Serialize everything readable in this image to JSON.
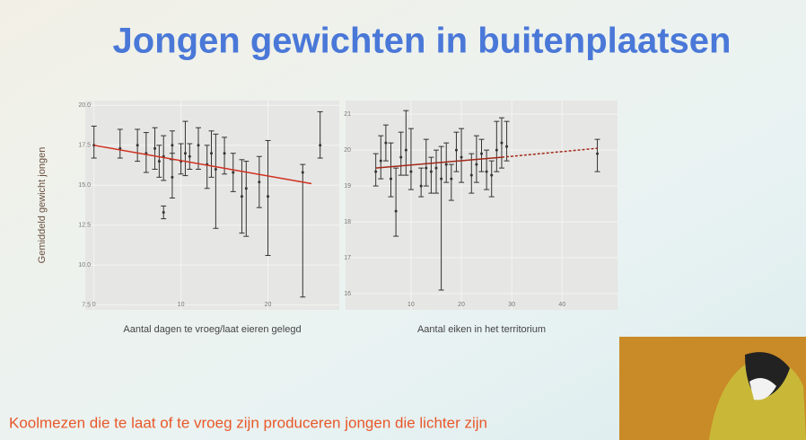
{
  "title": "Jongen gewichten in buitenplaatsen",
  "caption": "Koolmezen die te laat of te vroeg zijn produceren jongen die lichter zijn",
  "chart_data": [
    {
      "type": "errorbar",
      "xlabel": "Aantal dagen te vroeg/laat eieren gelegd",
      "ylabel": "Gemiddeld gewicht jongen",
      "color": "#333333",
      "x": [
        0,
        3,
        5,
        6,
        7,
        7.5,
        8,
        8,
        9,
        9,
        10,
        10.5,
        11,
        12,
        13,
        13.5,
        14,
        15,
        16,
        17,
        17.5,
        19,
        20,
        24,
        26
      ],
      "values": [
        17.5,
        17.3,
        17.5,
        17.0,
        17.3,
        16.5,
        16.8,
        13.3,
        15.5,
        17.5,
        16.5,
        17.0,
        16.8,
        17.5,
        16.3,
        17.0,
        16.0,
        17.0,
        15.8,
        14.3,
        14.8,
        15.2,
        14.3,
        15.8,
        17.5
      ],
      "lower": [
        16.7,
        16.7,
        16.5,
        15.8,
        16.0,
        15.5,
        15.3,
        12.9,
        14.2,
        16.6,
        15.7,
        15.6,
        16.0,
        16.0,
        14.8,
        15.5,
        12.3,
        15.7,
        14.6,
        12.0,
        11.8,
        13.6,
        10.6,
        8.0,
        16.7
      ],
      "upper": [
        18.7,
        18.5,
        18.5,
        18.3,
        18.6,
        17.5,
        18.1,
        13.7,
        17.0,
        18.4,
        17.6,
        19.0,
        17.6,
        18.6,
        17.5,
        18.4,
        18.2,
        18.0,
        17.0,
        16.6,
        16.5,
        16.8,
        17.8,
        16.3,
        19.6
      ],
      "trend": [
        {
          "x": [
            0,
            25
          ],
          "values": [
            17.5,
            15.1
          ],
          "color": "#d03020",
          "dashed": false
        }
      ],
      "xlim": [
        -1,
        28.2
      ],
      "ylim": [
        7.2,
        20.3
      ],
      "xticks": [
        0,
        10,
        20
      ],
      "yticks": [
        7.5,
        {
          "value": 10,
          "label": "10.0"
        },
        12.5,
        {
          "value": 15,
          "label": "15.0"
        },
        17.5,
        {
          "value": 20,
          "label": "20.0"
        }
      ]
    },
    {
      "type": "errorbar",
      "xlabel": "Aantal eiken in het territorium",
      "color": "#333333",
      "x": [
        3,
        4,
        5,
        6,
        7,
        8,
        9,
        10,
        12,
        13,
        14,
        15,
        16,
        17,
        18,
        19,
        20,
        22,
        23,
        24,
        25,
        26,
        27,
        28,
        29,
        47
      ],
      "values": [
        19.4,
        19.7,
        20.2,
        19.2,
        18.3,
        19.8,
        20.0,
        19.4,
        19.0,
        19.5,
        19.4,
        19.5,
        19.2,
        19.6,
        19.2,
        20.0,
        19.8,
        19.3,
        19.6,
        19.9,
        19.4,
        19.3,
        20.0,
        20.2,
        20.1,
        19.9
      ],
      "lower": [
        19.0,
        19.2,
        19.7,
        18.7,
        17.6,
        19.3,
        19.3,
        18.9,
        18.7,
        19.0,
        18.8,
        18.8,
        16.1,
        19.1,
        18.6,
        19.4,
        19.1,
        18.8,
        19.1,
        19.4,
        18.9,
        18.7,
        19.4,
        19.5,
        19.7,
        19.4
      ],
      "upper": [
        19.9,
        20.4,
        20.7,
        20.2,
        19.5,
        20.5,
        21.1,
        20.6,
        19.5,
        20.3,
        19.8,
        20.0,
        20.1,
        20.2,
        19.6,
        20.5,
        20.6,
        19.9,
        20.4,
        20.3,
        20.0,
        19.7,
        20.8,
        20.9,
        20.8,
        20.3
      ],
      "trend": [
        {
          "x": [
            3,
            28
          ],
          "values": [
            19.5,
            19.8
          ],
          "color": "#a02818",
          "dashed": false
        },
        {
          "x": [
            28,
            47
          ],
          "values": [
            19.8,
            20.05
          ],
          "color": "#a02818",
          "dashed": true
        }
      ],
      "xlim": [
        -3,
        51
      ],
      "ylim": [
        15.55,
        21.38
      ],
      "xticks": [
        10,
        20,
        30,
        40
      ],
      "yticks": [
        16,
        17,
        18,
        19,
        20,
        21
      ]
    }
  ]
}
